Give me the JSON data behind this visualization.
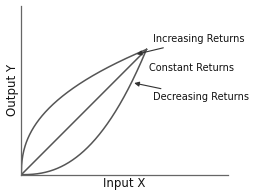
{
  "title": "",
  "xlabel": "Input X",
  "ylabel": "Output Y",
  "increasing_label": "Increasing Returns",
  "constant_label": "Constant Returns",
  "decreasing_label": "Decreasing Returns",
  "line_color": "#555555",
  "background_color": "#ffffff",
  "annotation_fontsize": 7.0,
  "axis_label_fontsize": 8.5,
  "arrow_color": "#333333",
  "increasing_exp": 0.42,
  "decreasing_exp": 2.4
}
